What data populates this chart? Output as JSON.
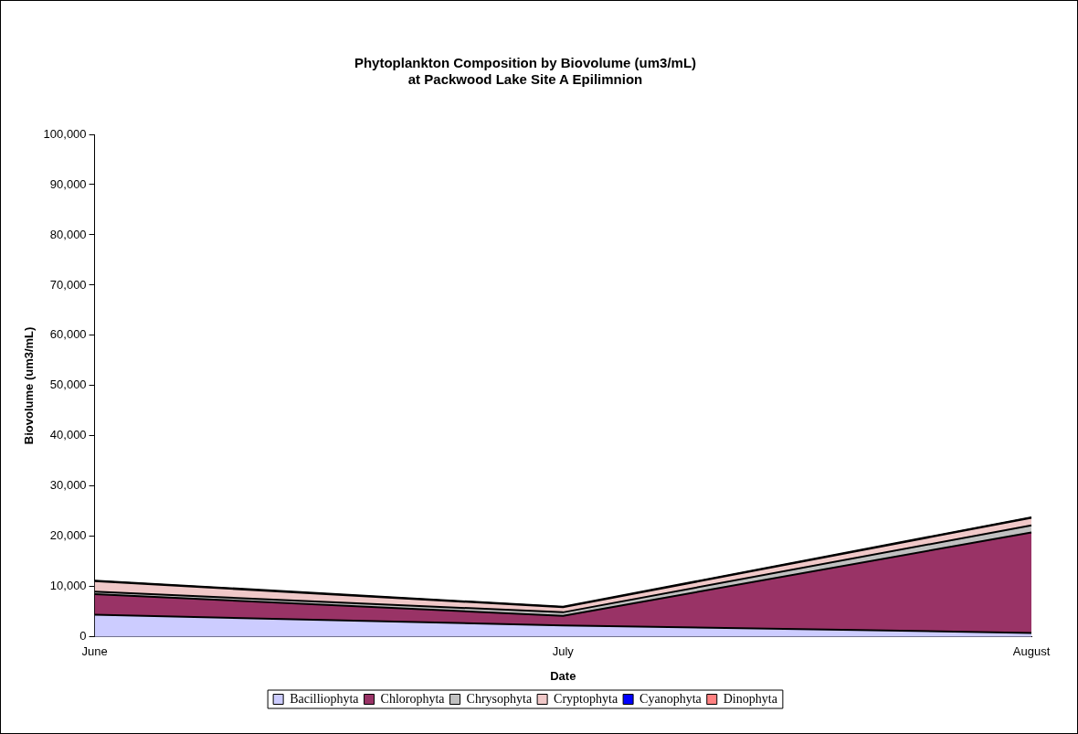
{
  "chart_data": {
    "type": "area",
    "stacked": true,
    "title": "Phytoplankton Composition by Biovolume (um3/mL)\nat Packwood Lake Site A Epilimnion",
    "xlabel": "Date",
    "ylabel": "Biovolume (um3/mL)",
    "categories": [
      "June",
      "July",
      "August"
    ],
    "series": [
      {
        "name": "Bacilliophyta",
        "color": "#ccccff",
        "values": [
          4400,
          2300,
          800
        ]
      },
      {
        "name": "Chlorophyta",
        "color": "#993366",
        "values": [
          4100,
          1900,
          20000
        ]
      },
      {
        "name": "Chrysophyta",
        "color": "#c0c0c0",
        "values": [
          500,
          700,
          1400
        ]
      },
      {
        "name": "Cryptophyta",
        "color": "#f0c8c8",
        "values": [
          2100,
          1000,
          1500
        ]
      },
      {
        "name": "Cyanophyta",
        "color": "#0000ff",
        "values": [
          100,
          100,
          100
        ]
      },
      {
        "name": "Dinophyta",
        "color": "#ff8080",
        "values": [
          null,
          null,
          null
        ]
      }
    ],
    "ylim": [
      0,
      100000
    ],
    "yticks": [
      0,
      {
        "value": 10000,
        "label": "10,000"
      },
      {
        "value": 20000,
        "label": "20,000"
      },
      {
        "value": 30000,
        "label": "30,000"
      },
      {
        "value": 40000,
        "label": "40,000"
      },
      {
        "value": 50000,
        "label": "50,000"
      },
      {
        "value": 60000,
        "label": "60,000"
      },
      {
        "value": 70000,
        "label": "70,000"
      },
      {
        "value": 80000,
        "label": "80,000"
      },
      {
        "value": 90000,
        "label": "90,000"
      },
      {
        "value": 100000,
        "label": "100,000"
      }
    ],
    "grid": false,
    "legend": "bottom"
  }
}
